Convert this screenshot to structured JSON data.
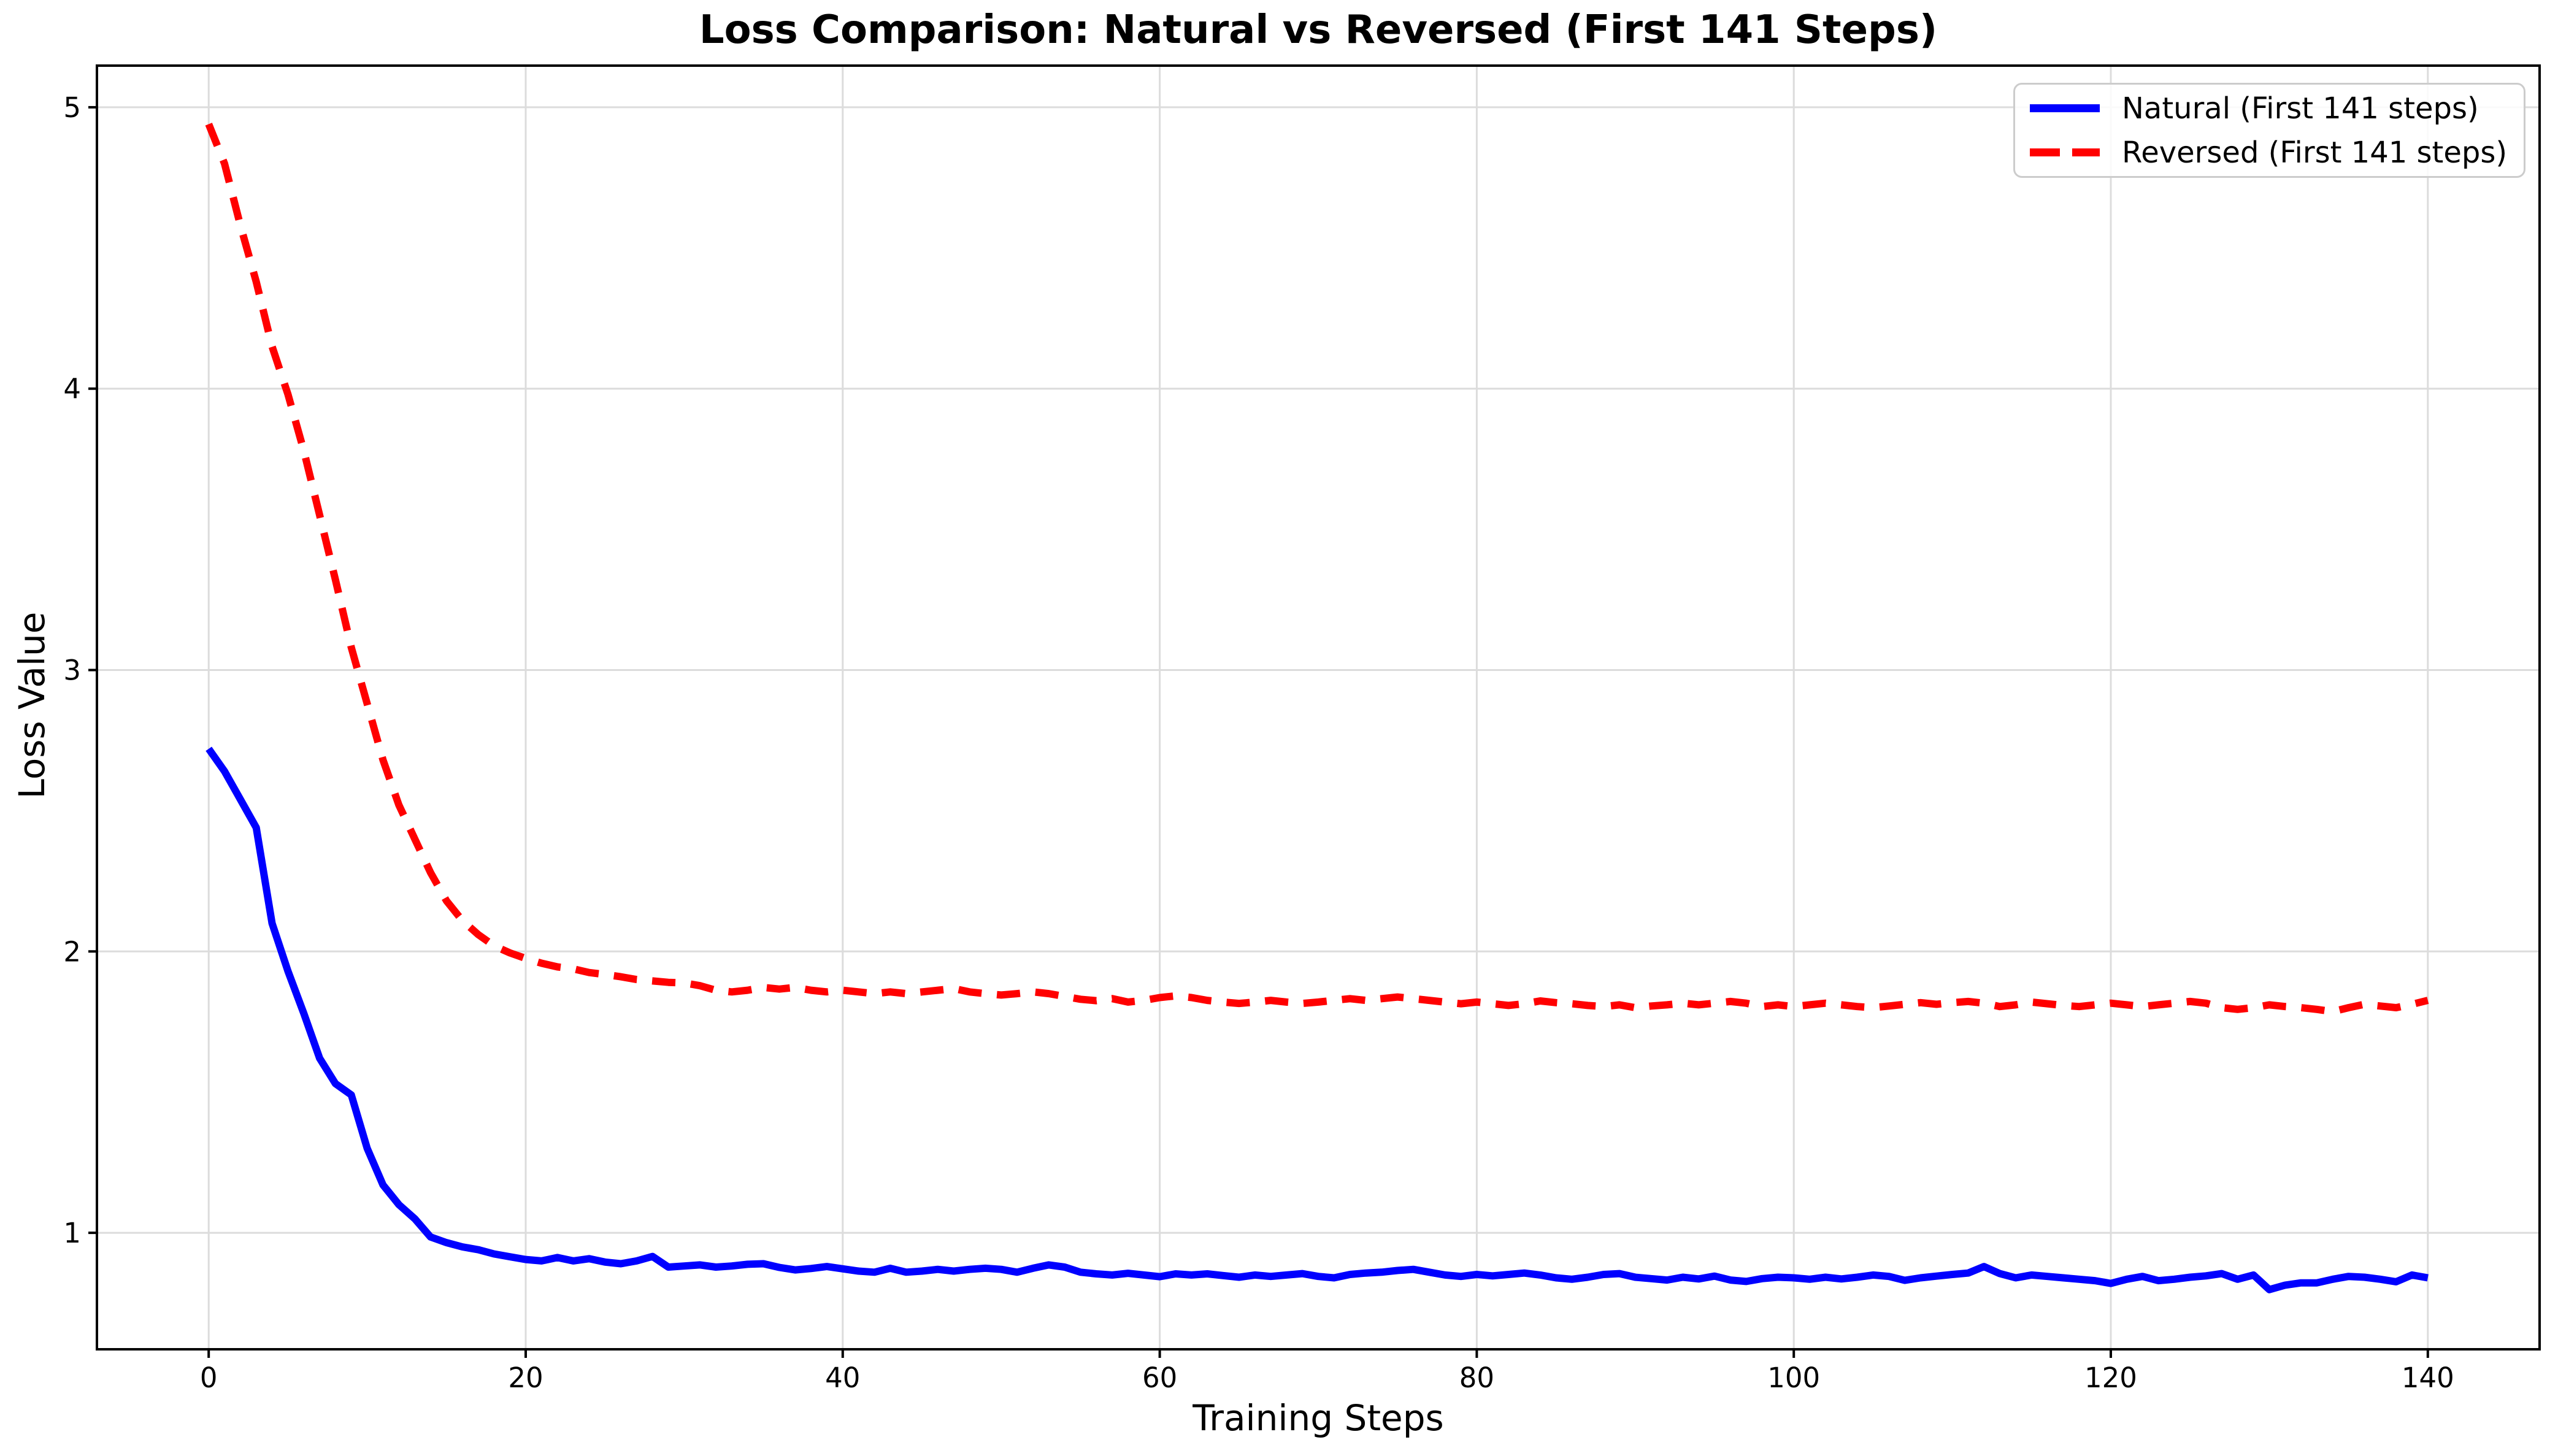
{
  "title": "Loss Comparison: Natural vs Reversed (First 141 Steps)",
  "axes": {
    "xlabel": "Training Steps",
    "ylabel": "Loss Value"
  },
  "legend": {
    "entries": [
      {
        "label": "Natural (First 141 steps)",
        "color": "#0000ff",
        "style": "solid"
      },
      {
        "label": "Reversed (First 141 steps)",
        "color": "#ff0000",
        "style": "dashed"
      }
    ],
    "position": "upper right"
  },
  "colors": {
    "natural_line": "#0000ff",
    "reversed_line": "#ff0000",
    "grid": "#dcdcdc",
    "spine": "#000000",
    "background": "#ffffff"
  },
  "chart_data": {
    "type": "line",
    "title": "Loss Comparison: Natural vs Reversed (First 141 Steps)",
    "xlabel": "Training Steps",
    "ylabel": "Loss Value",
    "xlim": [
      -7.05,
      147.05
    ],
    "ylim": [
      0.586,
      5.148
    ],
    "xticks": [
      0,
      20,
      40,
      60,
      80,
      100,
      120,
      140
    ],
    "yticks": [
      1,
      2,
      3,
      4,
      5
    ],
    "grid": true,
    "legend_position": "upper right",
    "x_start": 0,
    "x_step": 1,
    "n_points": 141,
    "series": [
      {
        "name": "Natural (First 141 steps)",
        "color": "#0000ff",
        "style": "solid",
        "values": [
          2.72,
          2.64,
          2.54,
          2.44,
          2.1,
          1.93,
          1.78,
          1.62,
          1.53,
          1.49,
          1.3,
          1.17,
          1.1,
          1.05,
          0.985,
          0.965,
          0.95,
          0.94,
          0.925,
          0.915,
          0.905,
          0.9,
          0.912,
          0.9,
          0.908,
          0.896,
          0.89,
          0.9,
          0.916,
          0.878,
          0.882,
          0.886,
          0.878,
          0.882,
          0.888,
          0.89,
          0.877,
          0.868,
          0.873,
          0.88,
          0.872,
          0.864,
          0.86,
          0.874,
          0.86,
          0.864,
          0.87,
          0.864,
          0.87,
          0.874,
          0.87,
          0.86,
          0.874,
          0.886,
          0.878,
          0.86,
          0.854,
          0.85,
          0.856,
          0.85,
          0.844,
          0.854,
          0.85,
          0.854,
          0.848,
          0.842,
          0.85,
          0.845,
          0.85,
          0.855,
          0.845,
          0.84,
          0.852,
          0.857,
          0.86,
          0.866,
          0.87,
          0.86,
          0.85,
          0.845,
          0.852,
          0.847,
          0.852,
          0.857,
          0.85,
          0.84,
          0.835,
          0.842,
          0.852,
          0.855,
          0.842,
          0.837,
          0.832,
          0.842,
          0.836,
          0.846,
          0.832,
          0.827,
          0.837,
          0.842,
          0.84,
          0.835,
          0.842,
          0.836,
          0.842,
          0.85,
          0.845,
          0.831,
          0.84,
          0.846,
          0.852,
          0.857,
          0.88,
          0.855,
          0.84,
          0.85,
          0.845,
          0.84,
          0.835,
          0.83,
          0.82,
          0.835,
          0.845,
          0.83,
          0.835,
          0.842,
          0.847,
          0.855,
          0.835,
          0.85,
          0.798,
          0.814,
          0.822,
          0.822,
          0.835,
          0.845,
          0.842,
          0.835,
          0.826,
          0.85,
          0.84
        ]
      },
      {
        "name": "Reversed (First 141 steps)",
        "color": "#ff0000",
        "style": "dashed",
        "values": [
          4.94,
          4.8,
          4.58,
          4.38,
          4.15,
          3.98,
          3.78,
          3.55,
          3.32,
          3.08,
          2.88,
          2.68,
          2.52,
          2.4,
          2.28,
          2.18,
          2.11,
          2.06,
          2.02,
          1.995,
          1.975,
          1.958,
          1.945,
          1.938,
          1.925,
          1.918,
          1.91,
          1.9,
          1.895,
          1.89,
          1.888,
          1.878,
          1.862,
          1.856,
          1.862,
          1.872,
          1.866,
          1.872,
          1.862,
          1.856,
          1.862,
          1.856,
          1.85,
          1.856,
          1.85,
          1.856,
          1.862,
          1.868,
          1.856,
          1.85,
          1.845,
          1.85,
          1.856,
          1.85,
          1.84,
          1.83,
          1.825,
          1.832,
          1.82,
          1.826,
          1.836,
          1.842,
          1.836,
          1.826,
          1.82,
          1.815,
          1.82,
          1.826,
          1.82,
          1.815,
          1.82,
          1.826,
          1.832,
          1.826,
          1.832,
          1.838,
          1.832,
          1.826,
          1.82,
          1.814,
          1.82,
          1.814,
          1.808,
          1.814,
          1.824,
          1.818,
          1.814,
          1.808,
          1.804,
          1.81,
          1.8,
          1.806,
          1.81,
          1.816,
          1.81,
          1.816,
          1.822,
          1.816,
          1.804,
          1.81,
          1.804,
          1.81,
          1.816,
          1.81,
          1.804,
          1.8,
          1.806,
          1.812,
          1.818,
          1.812,
          1.818,
          1.822,
          1.816,
          1.804,
          1.81,
          1.82,
          1.814,
          1.808,
          1.804,
          1.81,
          1.816,
          1.81,
          1.804,
          1.81,
          1.816,
          1.822,
          1.816,
          1.8,
          1.794,
          1.8,
          1.81,
          1.804,
          1.8,
          1.794,
          1.786,
          1.8,
          1.812,
          1.806,
          1.8,
          1.812,
          1.826
        ]
      }
    ]
  }
}
